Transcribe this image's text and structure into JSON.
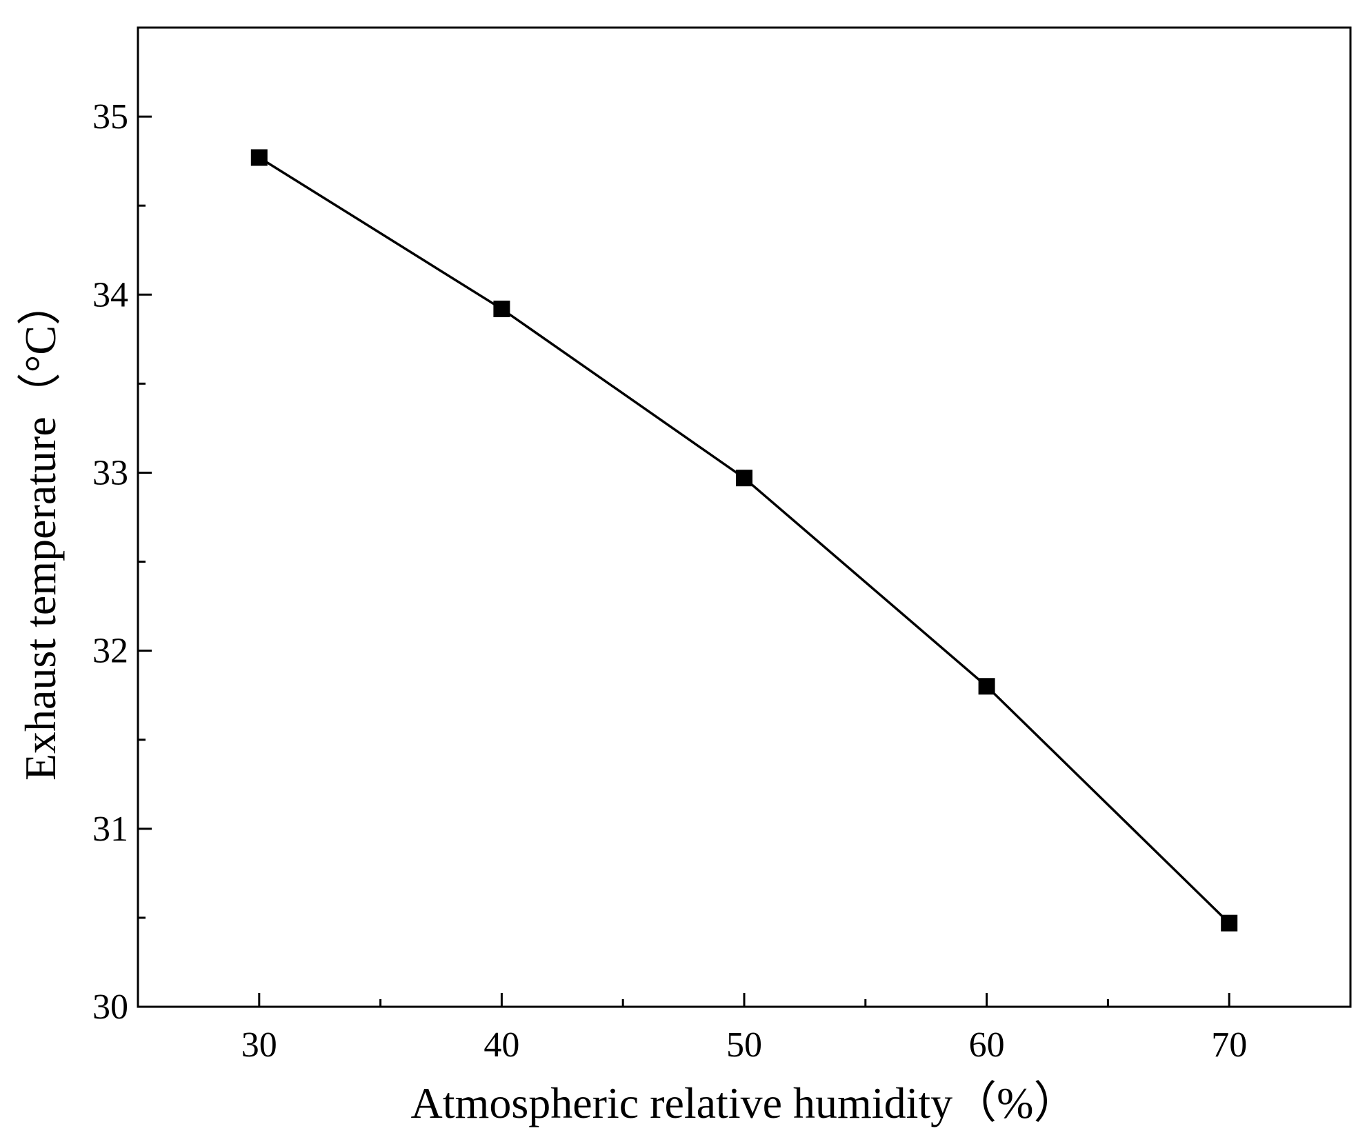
{
  "chart_data": {
    "type": "line",
    "title": "",
    "xlabel": "Atmospheric relative humidity（%）",
    "ylabel": "Exhaust temperature（°C）",
    "xlim": [
      25,
      75
    ],
    "ylim": [
      30,
      35.5
    ],
    "xticks": [
      30,
      40,
      50,
      60,
      70
    ],
    "yticks": [
      30,
      31,
      32,
      33,
      34,
      35
    ],
    "grid": false,
    "legend": "none",
    "series": [
      {
        "marker": "square",
        "color": "#000000",
        "x": [
          30,
          40,
          50,
          60,
          70
        ],
        "y": [
          34.77,
          33.92,
          32.97,
          31.8,
          30.47
        ]
      }
    ]
  }
}
